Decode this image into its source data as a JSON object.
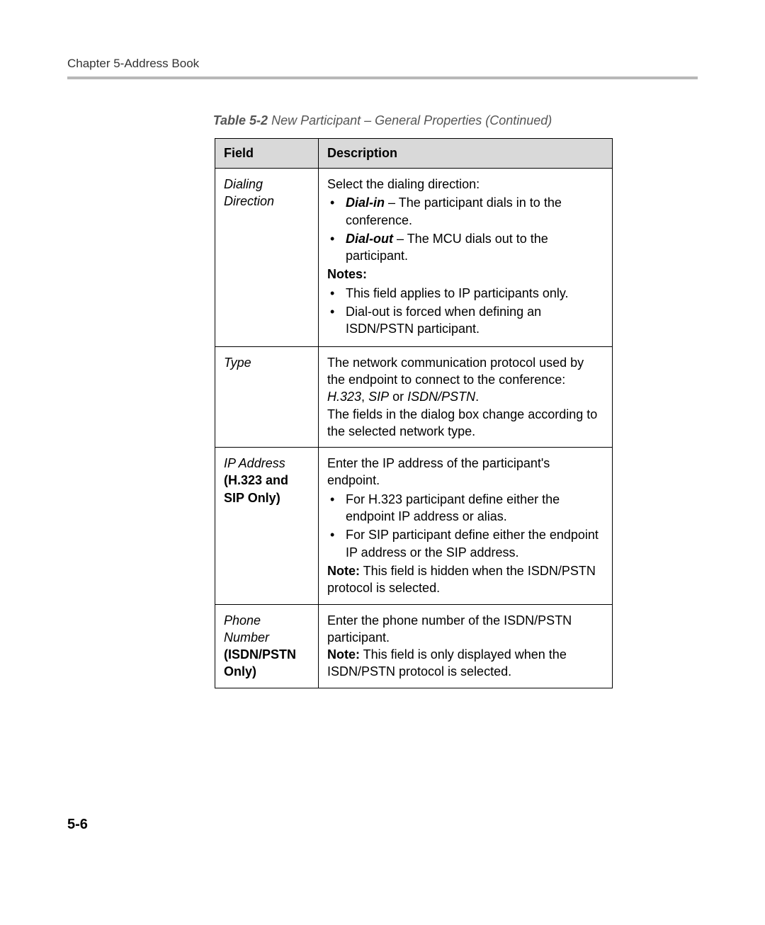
{
  "header": {
    "chapter": "Chapter 5-Address Book"
  },
  "caption": {
    "label": "Table 5-2",
    "title": " New Participant – General Properties (Continued)"
  },
  "table": {
    "headers": {
      "field": "Field",
      "description": "Description"
    },
    "rows": {
      "r1": {
        "field": "Dialing Direction",
        "desc_intro": "Select the dialing direction:",
        "b1_label": "Dial-in",
        "b1_text": " – The participant dials in to the conference.",
        "b2_label": "Dial-out",
        "b2_text": " – The MCU dials out to the participant.",
        "notes_label": "Notes:",
        "n1": "This field applies to IP participants only.",
        "n2": "Dial-out is forced when defining an ISDN/PSTN participant."
      },
      "r2": {
        "field": "Type",
        "p1_a": "The network communication protocol used by the endpoint to connect to the conference: ",
        "p1_h323": "H.323",
        "p1_sep": ", ",
        "p1_sip": "SIP",
        "p1_or": " or ",
        "p1_isdn": "ISDN/PSTN",
        "p1_dot": ".",
        "p2": "The fields in the dialog box change according to the selected network type."
      },
      "r3": {
        "field_line1": "IP Address",
        "field_line2": "(H.323 and SIP Only)",
        "p1": "Enter the IP address of the participant's endpoint.",
        "b1": "For H.323 participant define either the endpoint IP address or alias.",
        "b2": "For SIP participant define either the endpoint IP address or the SIP address.",
        "note_label": "Note:",
        "note_text": " This field is hidden when the ISDN/PSTN protocol is selected."
      },
      "r4": {
        "field_line1": "Phone Number",
        "field_line2": "(ISDN/PSTN Only)",
        "p1": "Enter the phone number of the ISDN/PSTN participant.",
        "note_label": "Note:",
        "note_text": " This field is only displayed when the ISDN/PSTN protocol is selected."
      }
    }
  },
  "pagenum": "5-6"
}
